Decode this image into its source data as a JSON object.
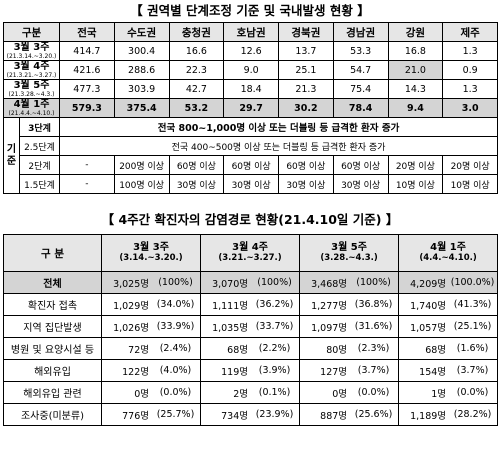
{
  "table1": {
    "title": "【 권역별 단계조정 기준 및 국내발생 현황 】",
    "header": [
      "구분",
      "전국",
      "수도권",
      "충청권",
      "호남권",
      "경북권",
      "경남권",
      "강원",
      "제주"
    ],
    "rows": [
      {
        "label": "3월 3주",
        "period": "(21.3.14.~3.20.)",
        "values": [
          "414.7",
          "300.4",
          "16.6",
          "12.6",
          "13.7",
          "53.3",
          "16.8",
          "1.3"
        ]
      },
      {
        "label": "3월 4주",
        "period": "(21.3.21.~3.27.)",
        "values": [
          "421.6",
          "288.6",
          "22.3",
          "9.0",
          "25.1",
          "54.7",
          "21.0",
          "0.9"
        ]
      },
      {
        "label": "3월 5주",
        "period": "(21.3.28.~4.3.)",
        "values": [
          "477.3",
          "303.9",
          "42.7",
          "18.4",
          "21.3",
          "75.4",
          "14.3",
          "1.3"
        ]
      },
      {
        "label": "4월 1주",
        "period": "(21.4.4.~4.10.)",
        "values": [
          "579.3",
          "375.4",
          "53.2",
          "29.7",
          "30.2",
          "78.4",
          "9.4",
          "3.0"
        ]
      }
    ],
    "criteria": {
      "label": "기준",
      "rows": [
        {
          "level": "3단계",
          "text": "전국 800~1,000명 이상 또는 더블링 등 급격한 환자 증가"
        },
        {
          "level": "2.5단계",
          "text": "전국 400~500명 이상 또는 더블링 등 급격한 환자 증가"
        },
        {
          "level": "2단계",
          "values": [
            "-",
            "200명 이상",
            "60명 이상",
            "60명 이상",
            "60명 이상",
            "60명 이상",
            "20명 이상",
            "20명 이상"
          ]
        },
        {
          "level": "1.5단계",
          "values": [
            "-",
            "100명 이상",
            "30명 이상",
            "30명 이상",
            "30명 이상",
            "30명 이상",
            "10명 이상",
            "10명 이상"
          ]
        }
      ]
    }
  },
  "table2": {
    "title": "【 4주간 확진자의 감염경로 현황(21.4.10일 기준) 】",
    "header": {
      "label": "구 분",
      "weeks": [
        {
          "name": "3월 3주",
          "period": "(3.14.~3.20.)"
        },
        {
          "name": "3월 4주",
          "period": "(3.21.~3.27.)"
        },
        {
          "name": "3월 5주",
          "period": "(3.28.~4.3.)"
        },
        {
          "name": "4월 1주",
          "period": "(4.4.~4.10.)"
        }
      ]
    },
    "rows": [
      {
        "label": "전체",
        "cells": [
          [
            "3,025명",
            "(100%)"
          ],
          [
            "3,070명",
            "(100%)"
          ],
          [
            "3,468명",
            "(100%)"
          ],
          [
            "4,209명",
            "(100.0%)"
          ]
        ]
      },
      {
        "label": "확진자 접촉",
        "cells": [
          [
            "1,029명",
            "(34.0%)"
          ],
          [
            "1,111명",
            "(36.2%)"
          ],
          [
            "1,277명",
            "(36.8%)"
          ],
          [
            "1,740명",
            "(41.3%)"
          ]
        ]
      },
      {
        "label": "지역 집단발생",
        "cells": [
          [
            "1,026명",
            "(33.9%)"
          ],
          [
            "1,035명",
            "(33.7%)"
          ],
          [
            "1,097명",
            "(31.6%)"
          ],
          [
            "1,057명",
            "(25.1%)"
          ]
        ]
      },
      {
        "label": "병원 및 요양시설 등",
        "cells": [
          [
            "72명",
            "(2.4%)"
          ],
          [
            "68명",
            "(2.2%)"
          ],
          [
            "80명",
            "(2.3%)"
          ],
          [
            "68명",
            "(1.6%)"
          ]
        ]
      },
      {
        "label": "해외유입",
        "cells": [
          [
            "122명",
            "(4.0%)"
          ],
          [
            "119명",
            "(3.9%)"
          ],
          [
            "127명",
            "(3.7%)"
          ],
          [
            "154명",
            "(3.7%)"
          ]
        ]
      },
      {
        "label": "해외유입 관련",
        "cells": [
          [
            "0명",
            "(0.0%)"
          ],
          [
            "2명",
            "(0.1%)"
          ],
          [
            "0명",
            "(0.0%)"
          ],
          [
            "1명",
            "(0.0%)"
          ]
        ]
      },
      {
        "label": "조사중(미분류)",
        "cells": [
          [
            "776명",
            "(25.7%)"
          ],
          [
            "734명",
            "(23.9%)"
          ],
          [
            "887명",
            "(25.6%)"
          ],
          [
            "1,189명",
            "(28.2%)"
          ]
        ]
      }
    ]
  }
}
